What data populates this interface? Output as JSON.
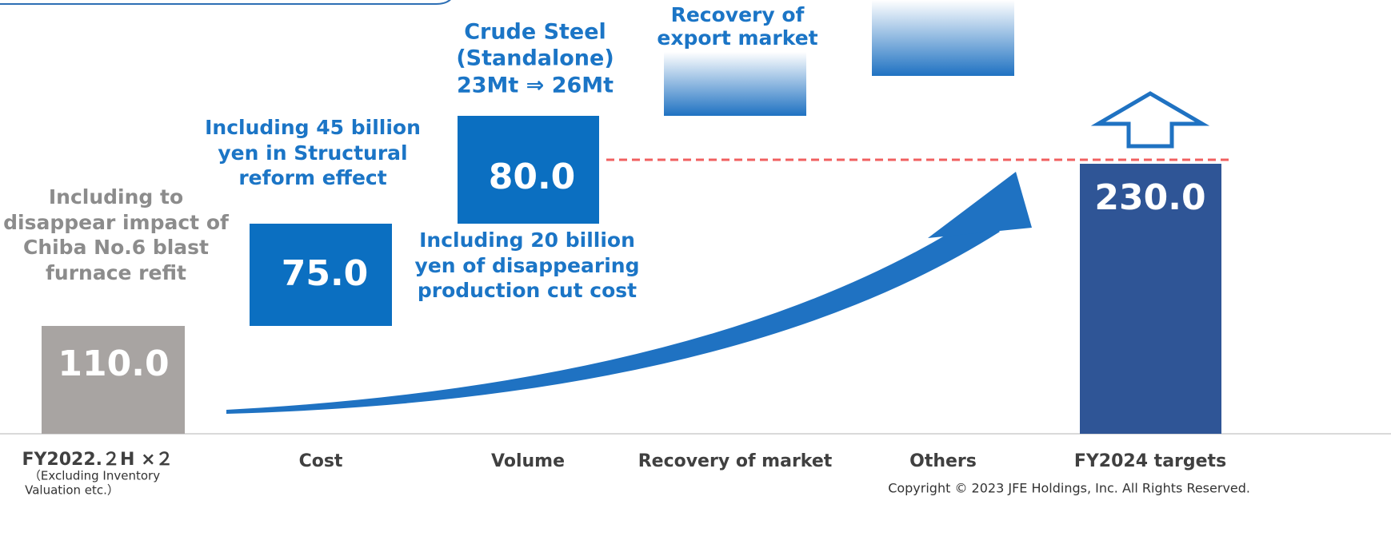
{
  "categories": [
    "FY2022.２H ×２",
    "Cost",
    "Volume",
    "Recovery of market",
    "Others",
    "FY2024 targets"
  ],
  "category_note": [
    "（Excluding Inventory",
    "Valuation etc.）"
  ],
  "bars": [
    "110.0",
    "75.0",
    "80.0",
    "230.0"
  ],
  "annotations": {
    "base": [
      "Including to",
      "disappear impact of",
      "Chiba No.6 blast",
      "furnace refit"
    ],
    "cost": [
      "Including 45 billion",
      "yen in Structural",
      "reform effect"
    ],
    "volume_top": [
      "Crude Steel",
      "(Standalone)",
      "23Mt ⇒ 26Mt"
    ],
    "volume_bottom": [
      "Including 20 billion",
      "yen of disappearing",
      "production cut cost"
    ],
    "recovery": [
      "Recovery of",
      "export market"
    ]
  },
  "copyright": "Copyright © 2023 JFE Holdings, Inc. All Rights Reserved."
}
